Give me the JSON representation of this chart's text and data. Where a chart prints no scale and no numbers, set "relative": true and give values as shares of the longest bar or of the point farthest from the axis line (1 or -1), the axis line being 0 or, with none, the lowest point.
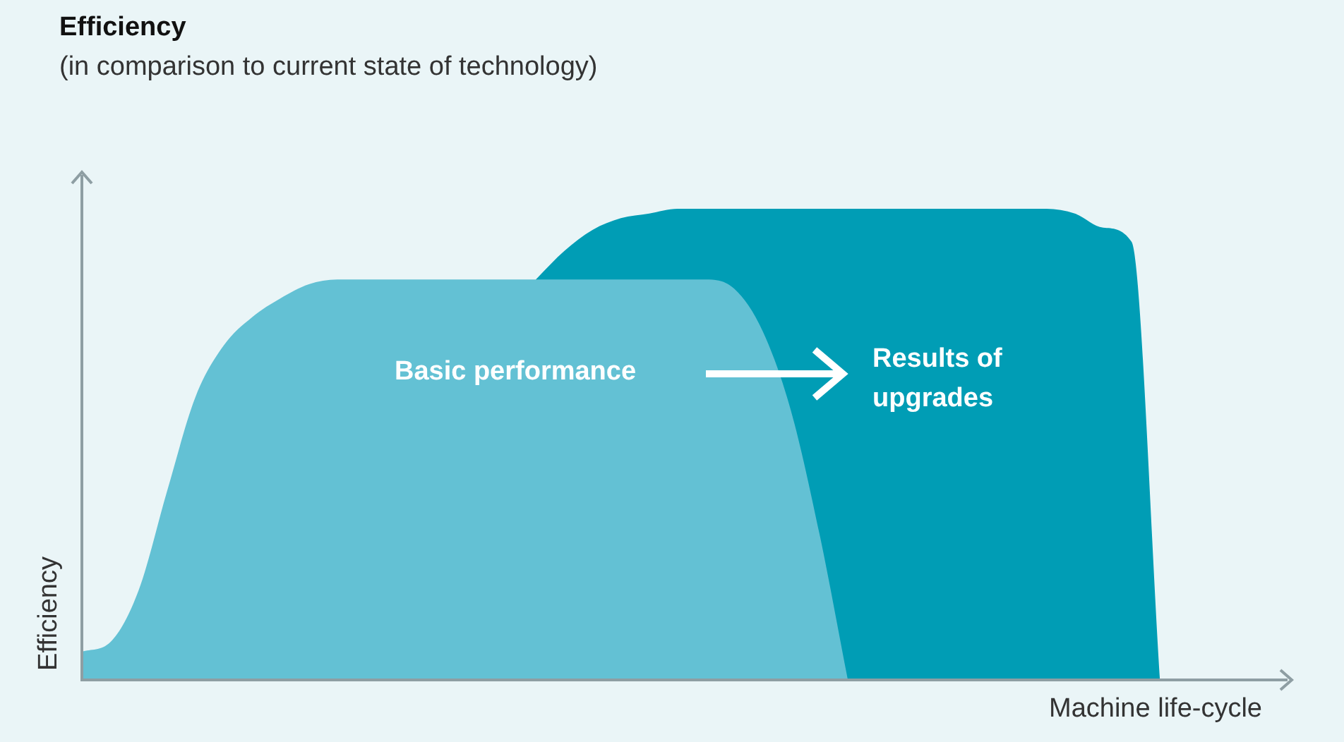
{
  "chart_data": {
    "type": "area",
    "title": "Efficiency",
    "subtitle": "(in comparison to current state of technology)",
    "xlabel": "Machine life-cycle",
    "ylabel": "Efficiency",
    "relative": true,
    "legend": false,
    "grid": false,
    "categories": [
      null,
      null,
      null,
      null,
      null,
      null,
      null,
      null,
      null,
      null,
      null,
      null,
      null,
      null,
      null,
      null,
      null,
      null,
      null,
      null,
      null,
      null,
      null,
      null,
      null,
      null,
      null,
      null,
      null,
      null,
      null,
      null,
      null,
      null,
      null,
      null,
      null,
      null,
      null,
      null,
      null,
      null,
      null
    ],
    "series": [
      {
        "name": "Basic performance",
        "color": "#63c1d4",
        "values": [
          0.06,
          0.08,
          0.19,
          0.4,
          0.6,
          0.71,
          0.77,
          0.81,
          0.84,
          0.85,
          0.85,
          0.85,
          0.85,
          0.85,
          0.85,
          0.85,
          0.85,
          0.85,
          0.85,
          0.85,
          0.85,
          0.85,
          0.85,
          0.83,
          0.74,
          0.57,
          0.31,
          0,
          null,
          null,
          null,
          null,
          null,
          null,
          null,
          null,
          null,
          null,
          null,
          null,
          null,
          null,
          null
        ]
      },
      {
        "name": "Results of upgrades",
        "color": "#009db5",
        "values": [
          null,
          null,
          null,
          null,
          null,
          null,
          null,
          null,
          null,
          null,
          null,
          null,
          null,
          null,
          null,
          null,
          0.85,
          0.91,
          0.955,
          0.98,
          0.99,
          1,
          1,
          1,
          1,
          1,
          1,
          1,
          1,
          1,
          1,
          1,
          1,
          1,
          1,
          0.99,
          0.96,
          0.93,
          0,
          null,
          null,
          null,
          null
        ]
      }
    ]
  }
}
